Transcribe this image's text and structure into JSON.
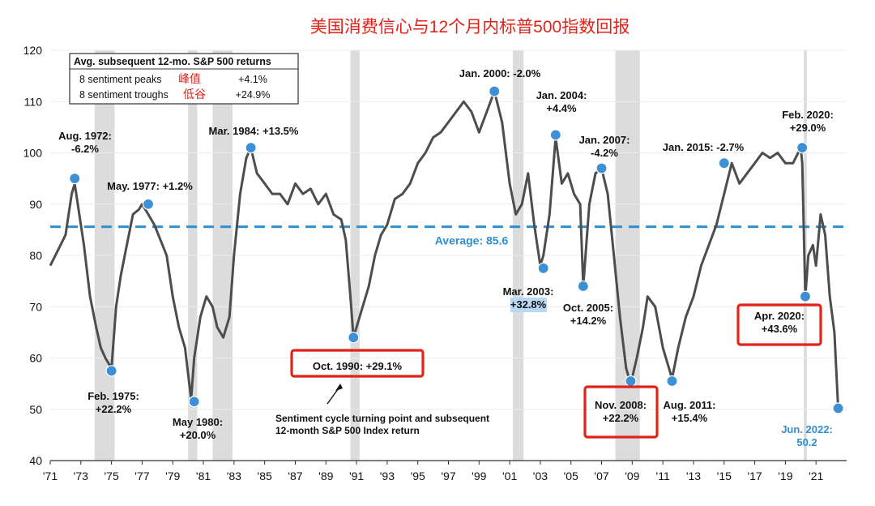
{
  "chart_data": {
    "type": "line",
    "title": "美国消费信心与12个月内标普500指数回报",
    "colors": {
      "line": "#4d4d4d",
      "marker": "#3d8fd6",
      "average": "#2f8fd0",
      "recession": "#dcdcdc",
      "highlight": "#e2231a",
      "title": "#e2231a"
    },
    "ylim": [
      40,
      120
    ],
    "yticks": [
      "40",
      "50",
      "60",
      "70",
      "80",
      "90",
      "100",
      "110",
      "120"
    ],
    "xlim": [
      1971,
      2023
    ],
    "xticks": [
      {
        "label": "'71",
        "x": 1971
      },
      {
        "label": "'73",
        "x": 1973
      },
      {
        "label": "'75",
        "x": 1975
      },
      {
        "label": "'77",
        "x": 1977
      },
      {
        "label": "'79",
        "x": 1979
      },
      {
        "label": "'81",
        "x": 1981
      },
      {
        "label": "'83",
        "x": 1983
      },
      {
        "label": "'85",
        "x": 1985
      },
      {
        "label": "'87",
        "x": 1987
      },
      {
        "label": "'89",
        "x": 1989
      },
      {
        "label": "'91",
        "x": 1991
      },
      {
        "label": "'93",
        "x": 1993
      },
      {
        "label": "'95",
        "x": 1995
      },
      {
        "label": "'97",
        "x": 1997
      },
      {
        "label": "'99",
        "x": 1999
      },
      {
        "label": "'01",
        "x": 2001
      },
      {
        "label": "'03",
        "x": 2003
      },
      {
        "label": "'05",
        "x": 2005
      },
      {
        "label": "'07",
        "x": 2007
      },
      {
        "label": "'09",
        "x": 2009
      },
      {
        "label": "'11",
        "x": 2011
      },
      {
        "label": "'13",
        "x": 2013
      },
      {
        "label": "'15",
        "x": 2015
      },
      {
        "label": "'17",
        "x": 2017
      },
      {
        "label": "'19",
        "x": 2019
      },
      {
        "label": "'21",
        "x": 2021
      }
    ],
    "recessions": [
      [
        1973.9,
        1975.2
      ],
      [
        1980.0,
        1980.6
      ],
      [
        1981.6,
        1982.9
      ],
      [
        1990.6,
        1991.2
      ],
      [
        2001.2,
        2001.9
      ],
      [
        2007.9,
        2009.5
      ],
      [
        2020.2,
        2020.4
      ]
    ],
    "average": {
      "value": 85.6,
      "label": "Average: 85.6"
    },
    "series": [
      {
        "x": [
          1971,
          1971.5,
          1972,
          1972.4,
          1972.6,
          1972.8,
          1973.2,
          1973.6,
          1974.0,
          1974.3,
          1974.6,
          1975.0,
          1975.3,
          1975.6,
          1976.0,
          1976.4,
          1976.8,
          1977.0,
          1977.4,
          1977.8,
          1978.2,
          1978.6,
          1979.0,
          1979.4,
          1979.8,
          1980.0,
          1980.2,
          1980.4,
          1980.6,
          1980.8,
          1981.2,
          1981.6,
          1981.9,
          1982.3,
          1982.7,
          1983.0,
          1983.4,
          1983.8,
          1984.1,
          1984.5,
          1985.0,
          1985.5,
          1986.0,
          1986.5,
          1987.0,
          1987.5,
          1988.0,
          1988.5,
          1989.0,
          1989.5,
          1990.0,
          1990.3,
          1990.6,
          1990.8,
          1991.0,
          1991.4,
          1991.8,
          1992.2,
          1992.6,
          1993.0,
          1993.5,
          1994.0,
          1994.5,
          1995.0,
          1995.5,
          1996.0,
          1996.5,
          1997.0,
          1997.5,
          1998.0,
          1998.5,
          1999.0,
          1999.5,
          2000.0,
          2000.5,
          2001.0,
          2001.4,
          2001.8,
          2002.2,
          2002.6,
          2003.0,
          2003.2,
          2003.6,
          2004.0,
          2004.4,
          2004.8,
          2005.2,
          2005.6,
          2005.8,
          2006.2,
          2006.6,
          2007.0,
          2007.4,
          2007.8,
          2008.2,
          2008.6,
          2008.9,
          2009.3,
          2009.7,
          2010.0,
          2010.5,
          2011.0,
          2011.4,
          2011.6,
          2012.0,
          2012.5,
          2013.0,
          2013.5,
          2014.0,
          2014.5,
          2015.0,
          2015.5,
          2016.0,
          2016.5,
          2017.0,
          2017.5,
          2018.0,
          2018.5,
          2019.0,
          2019.5,
          2020.0,
          2020.1,
          2020.3,
          2020.5,
          2020.8,
          2021.0,
          2021.3,
          2021.6,
          2021.9,
          2022.2,
          2022.45
        ],
        "y": [
          78,
          81,
          84,
          92,
          94,
          90,
          82,
          72,
          66,
          62,
          60,
          58,
          70,
          76,
          82,
          88,
          89,
          90,
          88,
          86,
          83,
          80,
          72,
          66,
          62,
          57,
          52,
          60,
          64,
          68,
          72,
          70,
          66,
          64,
          68,
          80,
          92,
          99,
          101,
          96,
          94,
          92,
          92,
          90,
          94,
          92,
          93,
          90,
          92,
          88,
          87,
          83,
          72,
          64,
          66,
          70,
          74,
          80,
          84,
          86,
          91,
          92,
          94,
          98,
          100,
          103,
          104,
          106,
          108,
          110,
          108,
          104,
          108,
          112,
          106,
          94,
          88,
          90,
          96,
          86,
          78,
          80,
          88,
          103,
          94,
          96,
          92,
          90,
          74,
          90,
          96,
          97,
          92,
          80,
          68,
          58,
          55,
          60,
          66,
          72,
          70,
          62,
          58,
          56,
          62,
          68,
          72,
          78,
          82,
          86,
          92,
          98,
          94,
          96,
          98,
          100,
          99,
          100,
          98,
          98,
          101,
          98,
          72,
          80,
          82,
          78,
          88,
          84,
          72,
          65,
          50
        ]
      }
    ],
    "points": [
      {
        "x": 1972.6,
        "y": 95
      },
      {
        "x": 1975.0,
        "y": 57.5
      },
      {
        "x": 1977.4,
        "y": 90
      },
      {
        "x": 1980.4,
        "y": 51.5
      },
      {
        "x": 1984.1,
        "y": 101
      },
      {
        "x": 1990.8,
        "y": 64
      },
      {
        "x": 2000.0,
        "y": 112
      },
      {
        "x": 2003.2,
        "y": 77.5
      },
      {
        "x": 2004.0,
        "y": 103.5
      },
      {
        "x": 2005.8,
        "y": 74
      },
      {
        "x": 2007.0,
        "y": 97
      },
      {
        "x": 2008.9,
        "y": 55.5
      },
      {
        "x": 2011.6,
        "y": 55.5
      },
      {
        "x": 2015.0,
        "y": 98
      },
      {
        "x": 2020.1,
        "y": 101
      },
      {
        "x": 2020.3,
        "y": 72
      },
      {
        "x": 2022.45,
        "y": 50.2
      }
    ],
    "annotations": [
      {
        "lines": [
          "Aug. 1972:",
          "-6.2%"
        ]
      },
      {
        "lines": [
          "Feb. 1975:",
          "+22.2%"
        ]
      },
      {
        "lines": [
          "May. 1977: +1.2%"
        ]
      },
      {
        "lines": [
          "May 1980:",
          "+20.0%"
        ]
      },
      {
        "lines": [
          "Mar. 1984: +13.5%"
        ]
      },
      {
        "lines": [
          "Oct. 1990: +29.1%"
        ]
      },
      {
        "lines": [
          "Jan. 2000: -2.0%"
        ]
      },
      {
        "lines": [
          "Mar. 2003:",
          "+32.8%"
        ]
      },
      {
        "lines": [
          "Jan. 2004:",
          "+4.4%"
        ]
      },
      {
        "lines": [
          "Oct. 2005:",
          "+14.2%"
        ]
      },
      {
        "lines": [
          "Jan. 2007:",
          "-4.2%"
        ]
      },
      {
        "lines": [
          "Nov. 2008:",
          "+22.2%"
        ]
      },
      {
        "lines": [
          "Aug. 2011:",
          "+15.4%"
        ]
      },
      {
        "lines": [
          "Jan. 2015: -2.7%"
        ]
      },
      {
        "lines": [
          "Feb. 2020:",
          "+29.0%"
        ]
      },
      {
        "lines": [
          "Apr. 2020:",
          "+43.6%"
        ]
      },
      {
        "lines": [
          "Jun. 2022:",
          "50.2"
        ]
      }
    ],
    "note": [
      "Sentiment cycle turning point and subsequent",
      "12-month S&P 500 Index return"
    ],
    "legend": {
      "title": "Avg. subsequent 12-mo. S&P 500 returns",
      "rows": [
        {
          "label": "8 sentiment peaks",
          "cn": "峰值",
          "value": "+4.1%"
        },
        {
          "label": "8 sentiment troughs",
          "cn": "低谷",
          "value": "+24.9%"
        }
      ]
    }
  }
}
